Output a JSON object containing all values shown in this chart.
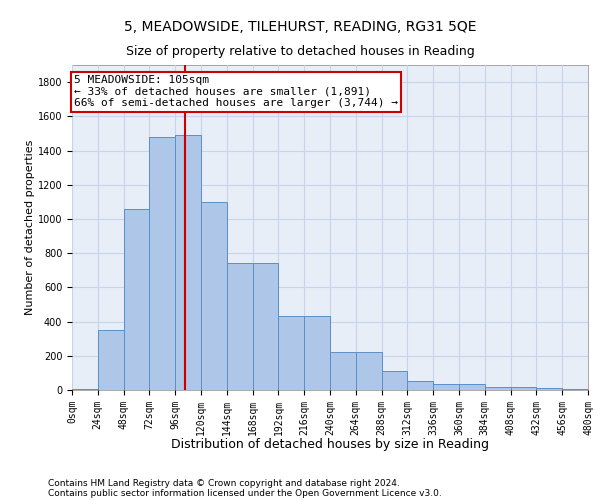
{
  "title": "5, MEADOWSIDE, TILEHURST, READING, RG31 5QE",
  "subtitle": "Size of property relative to detached houses in Reading",
  "xlabel": "Distribution of detached houses by size in Reading",
  "ylabel": "Number of detached properties",
  "footer_line1": "Contains HM Land Registry data © Crown copyright and database right 2024.",
  "footer_line2": "Contains public sector information licensed under the Open Government Licence v3.0.",
  "annotation_title": "5 MEADOWSIDE: 105sqm",
  "annotation_line2": "← 33% of detached houses are smaller (1,891)",
  "annotation_line3": "66% of semi-detached houses are larger (3,744) →",
  "property_size": 105,
  "bar_values": [
    5,
    350,
    1060,
    1480,
    1490,
    1100,
    740,
    740,
    430,
    430,
    220,
    220,
    110,
    50,
    35,
    35,
    20,
    15,
    10,
    5,
    0
  ],
  "bin_edges": [
    0,
    24,
    48,
    72,
    96,
    120,
    144,
    168,
    192,
    216,
    240,
    264,
    288,
    312,
    336,
    360,
    384,
    408,
    432,
    456,
    480
  ],
  "bar_color": "#aec6e8",
  "bar_edge_color": "#5b8fc8",
  "vline_color": "#cc0000",
  "vline_x": 105,
  "box_color": "#cc0000",
  "ylim": [
    0,
    1900
  ],
  "yticks": [
    0,
    200,
    400,
    600,
    800,
    1000,
    1200,
    1400,
    1600,
    1800
  ],
  "xtick_labels": [
    "0sqm",
    "24sqm",
    "48sqm",
    "72sqm",
    "96sqm",
    "120sqm",
    "144sqm",
    "168sqm",
    "192sqm",
    "216sqm",
    "240sqm",
    "264sqm",
    "288sqm",
    "312sqm",
    "336sqm",
    "360sqm",
    "384sqm",
    "408sqm",
    "432sqm",
    "456sqm",
    "480sqm"
  ],
  "grid_color": "#c8d4e8",
  "background_color": "#e8eef8",
  "title_fontsize": 10,
  "subtitle_fontsize": 9,
  "xlabel_fontsize": 9,
  "ylabel_fontsize": 8,
  "tick_fontsize": 7,
  "annotation_fontsize": 8,
  "footer_fontsize": 6.5
}
